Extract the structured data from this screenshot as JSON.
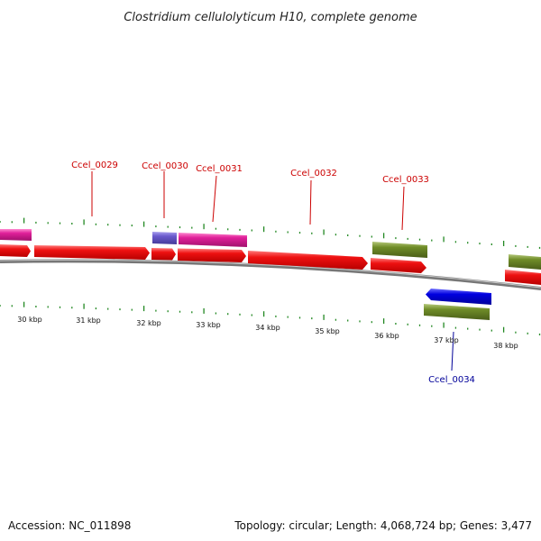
{
  "header": {
    "title": "Clostridium cellulolyticum H10, complete genome"
  },
  "footer": {
    "accession": "Accession: NC_011898",
    "summary": "Topology: circular; Length: 4,068,724 bp; Genes: 3,477"
  },
  "colors": {
    "backbone": "#888888",
    "forward_cds": "#ee1111",
    "pink_feature": "#e0209a",
    "olive_feature": "#6f8c28",
    "purple_feature": "#6a5acd",
    "blue_feature": "#0000e0",
    "tick": "#228822",
    "label_top": "#cc0000",
    "label_bottom": "#000099"
  },
  "kbp_labels": [
    "30 kbp",
    "31 kbp",
    "32 kbp",
    "33 kbp",
    "34 kbp",
    "35 kbp",
    "36 kbp",
    "37 kbp",
    "38 kbp"
  ],
  "gene_labels": [
    {
      "name": "Ccel_0029",
      "strand": "top"
    },
    {
      "name": "Ccel_0030",
      "strand": "top"
    },
    {
      "name": "Ccel_0031",
      "strand": "top"
    },
    {
      "name": "Ccel_0032",
      "strand": "top"
    },
    {
      "name": "Ccel_0033",
      "strand": "top"
    },
    {
      "name": "Ccel_0034",
      "strand": "bottom"
    }
  ]
}
